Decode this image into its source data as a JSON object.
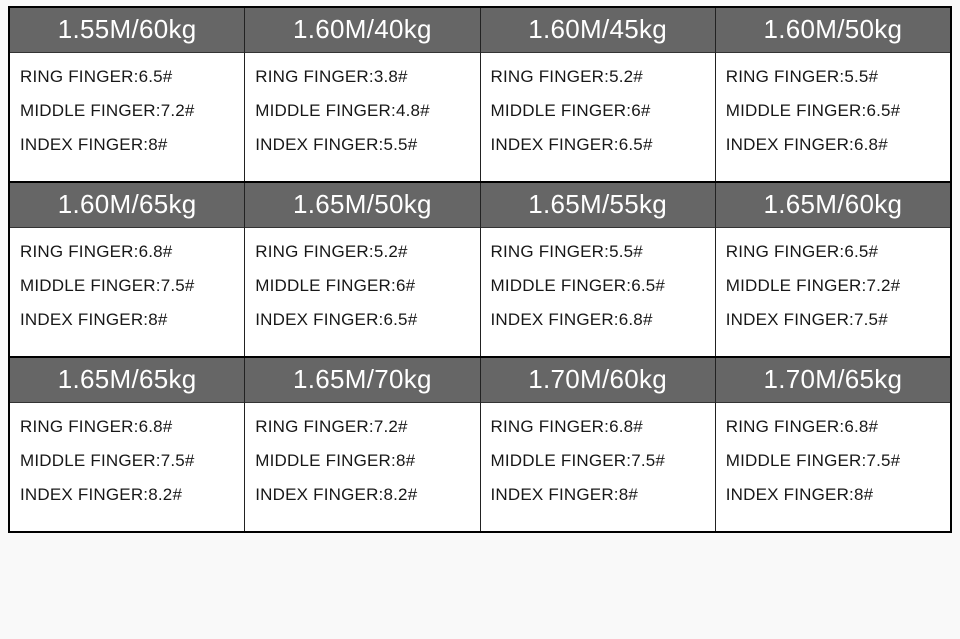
{
  "header_bg": "#666666",
  "header_fg": "#ffffff",
  "cell_bg": "#ffffff",
  "cell_fg": "#171717",
  "border_color": "#000000",
  "header_fontsize": 26,
  "body_fontsize": 17,
  "rows": [
    [
      {
        "header": "1.55M/60kg",
        "ring": "RING FINGER:6.5#",
        "middle": "MIDDLE FINGER:7.2#",
        "index": "INDEX FINGER:8#"
      },
      {
        "header": "1.60M/40kg",
        "ring": "RING FINGER:3.8#",
        "middle": "MIDDLE FINGER:4.8#",
        "index": "INDEX FINGER:5.5#"
      },
      {
        "header": "1.60M/45kg",
        "ring": "RING FINGER:5.2#",
        "middle": "MIDDLE FINGER:6#",
        "index": "INDEX FINGER:6.5#"
      },
      {
        "header": "1.60M/50kg",
        "ring": "RING FINGER:5.5#",
        "middle": "MIDDLE FINGER:6.5#",
        "index": "INDEX FINGER:6.8#"
      }
    ],
    [
      {
        "header": "1.60M/65kg",
        "ring": "RING FINGER:6.8#",
        "middle": "MIDDLE FINGER:7.5#",
        "index": "INDEX FINGER:8#"
      },
      {
        "header": "1.65M/50kg",
        "ring": "RING FINGER:5.2#",
        "middle": "MIDDLE FINGER:6#",
        "index": "INDEX FINGER:6.5#"
      },
      {
        "header": "1.65M/55kg",
        "ring": "RING FINGER:5.5#",
        "middle": "MIDDLE FINGER:6.5#",
        "index": "INDEX FINGER:6.8#"
      },
      {
        "header": "1.65M/60kg",
        "ring": "RING FINGER:6.5#",
        "middle": "MIDDLE FINGER:7.2#",
        "index": "INDEX FINGER:7.5#"
      }
    ],
    [
      {
        "header": "1.65M/65kg",
        "ring": "RING FINGER:6.8#",
        "middle": "MIDDLE FINGER:7.5#",
        "index": "INDEX FINGER:8.2#"
      },
      {
        "header": "1.65M/70kg",
        "ring": "RING FINGER:7.2#",
        "middle": "MIDDLE FINGER:8#",
        "index": "INDEX FINGER:8.2#"
      },
      {
        "header": "1.70M/60kg",
        "ring": "RING FINGER:6.8#",
        "middle": "MIDDLE FINGER:7.5#",
        "index": "INDEX FINGER:8#"
      },
      {
        "header": "1.70M/65kg",
        "ring": "RING FINGER:6.8#",
        "middle": "MIDDLE FINGER:7.5#",
        "index": "INDEX FINGER:8#"
      }
    ]
  ]
}
